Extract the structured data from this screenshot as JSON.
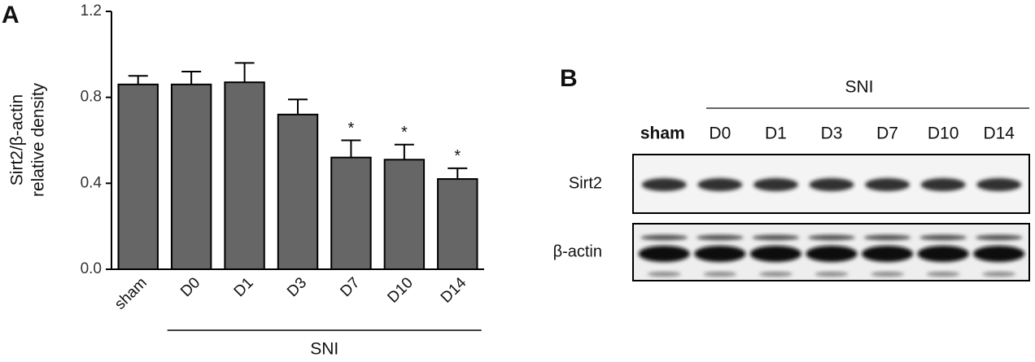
{
  "chart_data": {
    "type": "bar",
    "panel_label": "A",
    "y_label_lines": [
      "Sirt2/β-actin",
      "relative density"
    ],
    "categories": [
      "sham",
      "D0",
      "D1",
      "D3",
      "D7",
      "D10",
      "D14"
    ],
    "values": [
      0.86,
      0.86,
      0.87,
      0.72,
      0.52,
      0.51,
      0.42
    ],
    "errors": [
      0.04,
      0.06,
      0.09,
      0.07,
      0.08,
      0.07,
      0.05
    ],
    "color": "#666666",
    "ylim": [
      0,
      1.2
    ],
    "yticks": [
      {
        "value": 0,
        "label": "0.0"
      },
      0.4,
      0.8,
      1.2
    ],
    "annotations": [
      {
        "category": "D7",
        "text": "*"
      },
      {
        "category": "D10",
        "text": "*"
      },
      {
        "category": "D14",
        "text": "*"
      }
    ],
    "group": {
      "label": "SNI",
      "from": "D0",
      "to": "D14"
    }
  },
  "blot": {
    "panel_label": "B",
    "group_label": "SNI",
    "lanes": [
      "sham",
      "D0",
      "D1",
      "D3",
      "D7",
      "D10",
      "D14"
    ],
    "rows": [
      "Sirt2",
      "β-actin"
    ]
  }
}
